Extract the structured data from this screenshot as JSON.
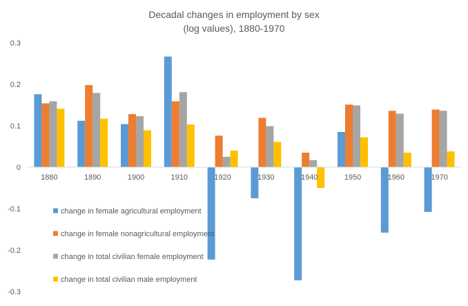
{
  "chart_data": {
    "type": "bar",
    "title_lines": [
      "Decadal changes in employment by sex",
      "(log values), 1880-1970"
    ],
    "xlabel": "",
    "ylabel": "",
    "categories": [
      "1880",
      "1890",
      "1900",
      "1910",
      "1920",
      "1930",
      "1940",
      "1950",
      "1960",
      "1970"
    ],
    "ylim": [
      -0.3,
      0.3
    ],
    "yticks": [
      0.3,
      0.2,
      0.1,
      0,
      -0.1,
      -0.2,
      -0.3
    ],
    "ytick_labels": [
      "0.3",
      "0.2",
      "0.1",
      "0",
      "-0.1",
      "-0.2",
      "-0.3"
    ],
    "grid": false,
    "legend_position": "lower-left inside plot",
    "series": [
      {
        "name": "change in female agricultural employment",
        "color": "#5B9BD5",
        "values": [
          0.176,
          0.112,
          0.104,
          0.267,
          -0.223,
          -0.075,
          -0.273,
          0.085,
          -0.158,
          -0.108
        ]
      },
      {
        "name": "change in female nonagricultural employment",
        "color": "#ED7D31",
        "values": [
          0.154,
          0.198,
          0.128,
          0.159,
          0.076,
          0.119,
          0.035,
          0.151,
          0.136,
          0.139
        ]
      },
      {
        "name": "change in total civilian female employment",
        "color": "#A5A5A5",
        "values": [
          0.159,
          0.179,
          0.123,
          0.181,
          0.025,
          0.099,
          0.017,
          0.149,
          0.129,
          0.136
        ]
      },
      {
        "name": "change in total civilian male employment",
        "color": "#FFC000",
        "values": [
          0.141,
          0.117,
          0.089,
          0.103,
          0.04,
          0.061,
          -0.05,
          0.072,
          0.035,
          0.038
        ]
      }
    ]
  }
}
